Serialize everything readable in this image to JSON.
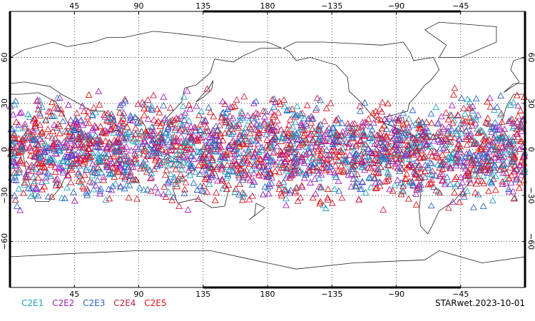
{
  "map": {
    "projection": "cylindrical",
    "lon_ticks": [
      "45",
      "90",
      "135",
      "180",
      "−135",
      "−90",
      "−45"
    ],
    "lat_ticks": [
      "60",
      "30",
      "0",
      "−30",
      "−60"
    ],
    "grid": "dotted",
    "marker": "open-triangle"
  },
  "legend": {
    "items": [
      {
        "label": "C2E1",
        "color": "#1fa3b8"
      },
      {
        "label": "C2E2",
        "color": "#a020c0"
      },
      {
        "label": "C2E3",
        "color": "#2a63c8"
      },
      {
        "label": "C2E4",
        "color": "#d0203a"
      },
      {
        "label": "C2E5",
        "color": "#e01010"
      }
    ]
  },
  "source_label": "STARwet.2023-10-01"
}
